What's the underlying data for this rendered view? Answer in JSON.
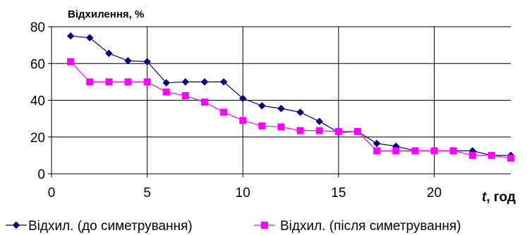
{
  "chart_data": {
    "type": "line",
    "ylabel": "Відхилення, %",
    "xlabel_italic": "t",
    "xlabel_rest": ", год",
    "xlim": [
      0,
      24
    ],
    "ylim": [
      0,
      80
    ],
    "x_ticks": [
      0,
      5,
      10,
      15,
      20
    ],
    "y_ticks": [
      0,
      20,
      40,
      60,
      80
    ],
    "grid": true,
    "legend_position": "bottom",
    "series": [
      {
        "name": "Відхил. (до симетрування)",
        "color": "#00007f",
        "marker": "diamond",
        "x": [
          1,
          2,
          3,
          4,
          5,
          6,
          7,
          8,
          9,
          10,
          11,
          12,
          13,
          14,
          15,
          16,
          17,
          18,
          19,
          20,
          21,
          22,
          23,
          24
        ],
        "y": [
          75,
          74,
          65.5,
          61.5,
          61,
          49.5,
          50,
          50,
          50,
          41,
          37,
          35.5,
          33.5,
          28.5,
          22.5,
          23,
          16.5,
          15,
          12.5,
          12.5,
          12.5,
          12.5,
          10,
          10
        ]
      },
      {
        "name": "Відхил. (після симетрування)",
        "color": "#ff00ff",
        "marker": "square",
        "x": [
          1,
          2,
          3,
          4,
          5,
          6,
          7,
          8,
          9,
          10,
          11,
          12,
          13,
          14,
          15,
          16,
          17,
          18,
          19,
          20,
          21,
          22,
          23,
          24
        ],
        "y": [
          61,
          50,
          50,
          50,
          50,
          44.5,
          42.5,
          39,
          33.5,
          29,
          26,
          25.5,
          23.5,
          23.5,
          23,
          23,
          12.5,
          12.5,
          12.5,
          12.5,
          12.5,
          10,
          10,
          8.5
        ]
      }
    ]
  }
}
